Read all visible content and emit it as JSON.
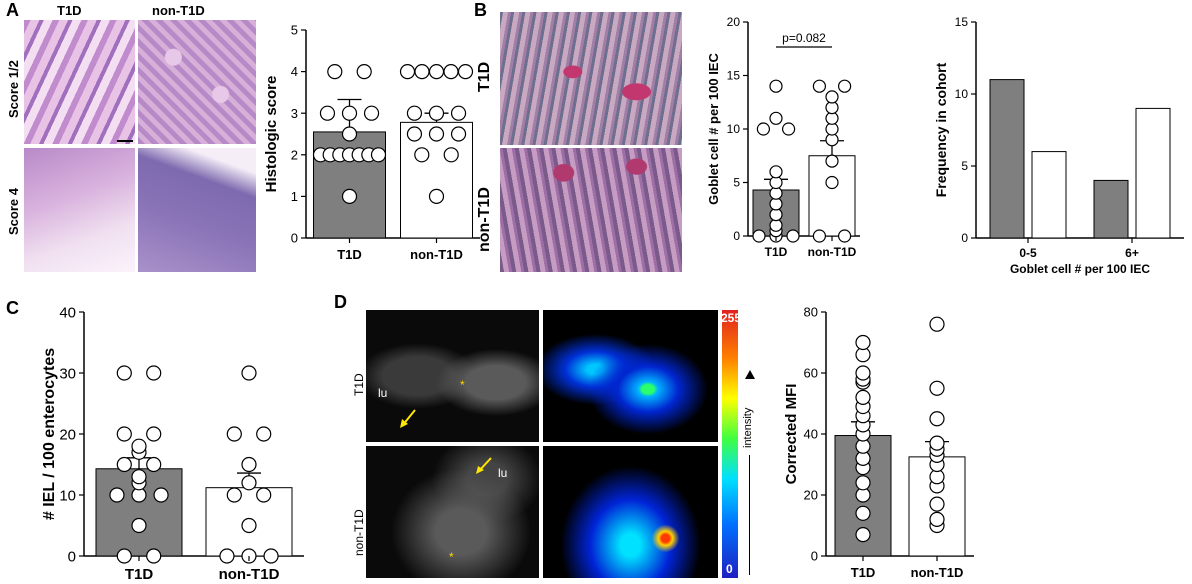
{
  "panels": {
    "A": {
      "letter": "A",
      "image_labels": {
        "col1": "T1D",
        "col2": "non-T1D",
        "row1": "Score 1/2",
        "row2": "Score 4"
      }
    },
    "B": {
      "letter": "B",
      "image_labels": {
        "row1": "T1D",
        "row2": "non-T1D"
      },
      "p_value": "p=0.082"
    },
    "C": {
      "letter": "C"
    },
    "D": {
      "letter": "D",
      "image_labels": {
        "row1": "T1D",
        "row2": "non-T1D",
        "lumen": "lu",
        "star": "*"
      },
      "colorbar": {
        "max": "255",
        "min": "0",
        "label": "intensity"
      }
    }
  },
  "chart_data": [
    {
      "id": "A-histologic-score",
      "type": "bar",
      "categories": [
        "T1D",
        "non-T1D"
      ],
      "values": [
        2.55,
        2.78
      ],
      "errors": [
        0.78,
        0.22
      ],
      "points": [
        [
          1,
          2,
          2,
          2,
          2,
          2,
          2,
          2,
          2.5,
          3,
          3,
          3,
          4,
          4
        ],
        [
          1,
          2,
          2,
          2.5,
          2.5,
          2.5,
          3,
          3,
          3,
          4,
          4,
          4,
          4,
          4
        ]
      ],
      "ylabel": "Histologic score",
      "ylim": [
        0,
        5
      ],
      "yticks": [
        0,
        1,
        2,
        3,
        4,
        5
      ]
    },
    {
      "id": "B-goblet-cell",
      "type": "bar",
      "categories": [
        "T1D",
        "non-T1D"
      ],
      "values": [
        4.3,
        7.5
      ],
      "errors": [
        1.0,
        1.4
      ],
      "points": [
        [
          0,
          0,
          0,
          0.5,
          1,
          2,
          3,
          4,
          5,
          6,
          10,
          10,
          11,
          14
        ],
        [
          0,
          0,
          5,
          7,
          9,
          10,
          11,
          12,
          13,
          14,
          14
        ]
      ],
      "ylabel": "Goblet  cell # per 100 IEC",
      "ylim": [
        0,
        20
      ],
      "yticks": [
        0,
        5,
        10,
        15,
        20
      ],
      "annotation": "p=0.082"
    },
    {
      "id": "B-frequency",
      "type": "bar",
      "categories": [
        "0-5",
        "6+"
      ],
      "series": [
        {
          "values": [
            11,
            4
          ]
        },
        {
          "values": [
            6,
            9
          ]
        }
      ],
      "xlabel": "Goblet  cell # per 100 IEC",
      "ylabel": "Frequency in cohort",
      "ylim": [
        0,
        15
      ],
      "yticks": [
        0,
        5,
        10,
        15
      ]
    },
    {
      "id": "C-IEL",
      "type": "bar",
      "categories": [
        "T1D",
        "non-T1D"
      ],
      "values": [
        14.3,
        11.2
      ],
      "errors": [
        1.8,
        2.4
      ],
      "points": [
        [
          0,
          0,
          5,
          10,
          10,
          10,
          12,
          13,
          15,
          15,
          17,
          18,
          20,
          20,
          30,
          30
        ],
        [
          0,
          0,
          0,
          5,
          10,
          10,
          12,
          15,
          20,
          20,
          30
        ]
      ],
      "ylabel": "# IEL / 100 enterocytes",
      "ylim": [
        0,
        40
      ],
      "yticks": [
        0,
        10,
        20,
        30,
        40
      ]
    },
    {
      "id": "D-corrected-mfi",
      "type": "bar",
      "categories": [
        "T1D",
        "non-T1D"
      ],
      "values": [
        39.5,
        32.5
      ],
      "errors": [
        4.5,
        5.0
      ],
      "points": [
        [
          7,
          14,
          20,
          24,
          29,
          32,
          36,
          40,
          43,
          46,
          49,
          52,
          57,
          58,
          60,
          66,
          70
        ],
        [
          10,
          12,
          17,
          23,
          26,
          30,
          33,
          35,
          37,
          45,
          55,
          76
        ]
      ],
      "ylabel": "Corrected MFI",
      "ylim": [
        0,
        80
      ],
      "yticks": [
        0,
        20,
        40,
        60,
        80
      ]
    }
  ],
  "colors": {
    "t1d_bar": "#7f7f7f",
    "non_t1d_bar": "#ffffff",
    "heat_high": "#ff2a00",
    "heat_low": "#0000b0"
  }
}
